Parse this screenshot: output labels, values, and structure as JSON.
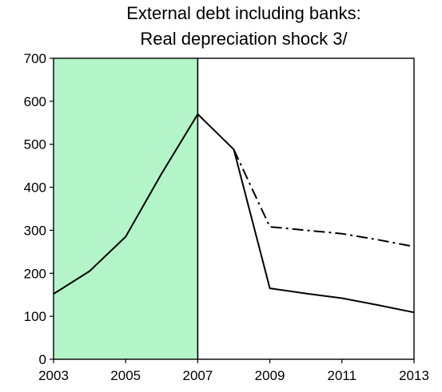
{
  "chart_data": {
    "type": "line",
    "title_lines": [
      "External debt including banks:",
      "Real depreciation shock  3/"
    ],
    "xlabel": "",
    "ylabel": "",
    "xlim": [
      2003,
      2013
    ],
    "ylim": [
      0,
      700
    ],
    "x_ticks": [
      2003,
      2005,
      2007,
      2009,
      2011,
      2013
    ],
    "y_ticks": [
      0,
      100,
      200,
      300,
      400,
      500,
      600,
      700
    ],
    "x_tick_labels": [
      "2003",
      "2005",
      "2007",
      "2009",
      "2011",
      "2013"
    ],
    "y_tick_labels": [
      "0",
      "100",
      "200",
      "300",
      "400",
      "500",
      "600",
      "700"
    ],
    "grid": false,
    "shaded_region": {
      "x_start": 2003,
      "x_end": 2007,
      "color": "#b3f5c8"
    },
    "vertical_line_x": 2007,
    "series": [
      {
        "style": "solid",
        "color": "#000000",
        "x": [
          2003,
          2004,
          2005,
          2006,
          2007,
          2008,
          2009,
          2010,
          2011,
          2012,
          2013
        ],
        "values": [
          152,
          205,
          285,
          432,
          570,
          488,
          165,
          153,
          142,
          126,
          109
        ]
      },
      {
        "style": "dash-dot",
        "color": "#000000",
        "x": [
          2008,
          2009,
          2010,
          2011,
          2012,
          2013
        ],
        "values": [
          488,
          308,
          300,
          292,
          278,
          262
        ]
      }
    ]
  }
}
